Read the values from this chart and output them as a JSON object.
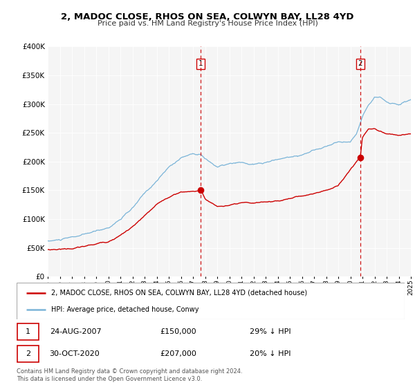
{
  "title": "2, MADOC CLOSE, RHOS ON SEA, COLWYN BAY, LL28 4YD",
  "subtitle": "Price paid vs. HM Land Registry's House Price Index (HPI)",
  "legend_line1": "2, MADOC CLOSE, RHOS ON SEA, COLWYN BAY, LL28 4YD (detached house)",
  "legend_line2": "HPI: Average price, detached house, Conwy",
  "event1_date": "24-AUG-2007",
  "event1_price": "£150,000",
  "event1_hpi": "29% ↓ HPI",
  "event2_date": "30-OCT-2020",
  "event2_price": "£207,000",
  "event2_hpi": "20% ↓ HPI",
  "footer": "Contains HM Land Registry data © Crown copyright and database right 2024.\nThis data is licensed under the Open Government Licence v3.0.",
  "hpi_color": "#7ab4d8",
  "price_color": "#cc0000",
  "event_line_color": "#cc0000",
  "background_plot": "#f5f5f5",
  "ylim": [
    0,
    400000
  ],
  "yticks": [
    0,
    50000,
    100000,
    150000,
    200000,
    250000,
    300000,
    350000,
    400000
  ],
  "event1_x": 2007.65,
  "event1_y": 150000,
  "event2_x": 2020.83,
  "event2_y": 207000,
  "xmin": 1995,
  "xmax": 2025
}
